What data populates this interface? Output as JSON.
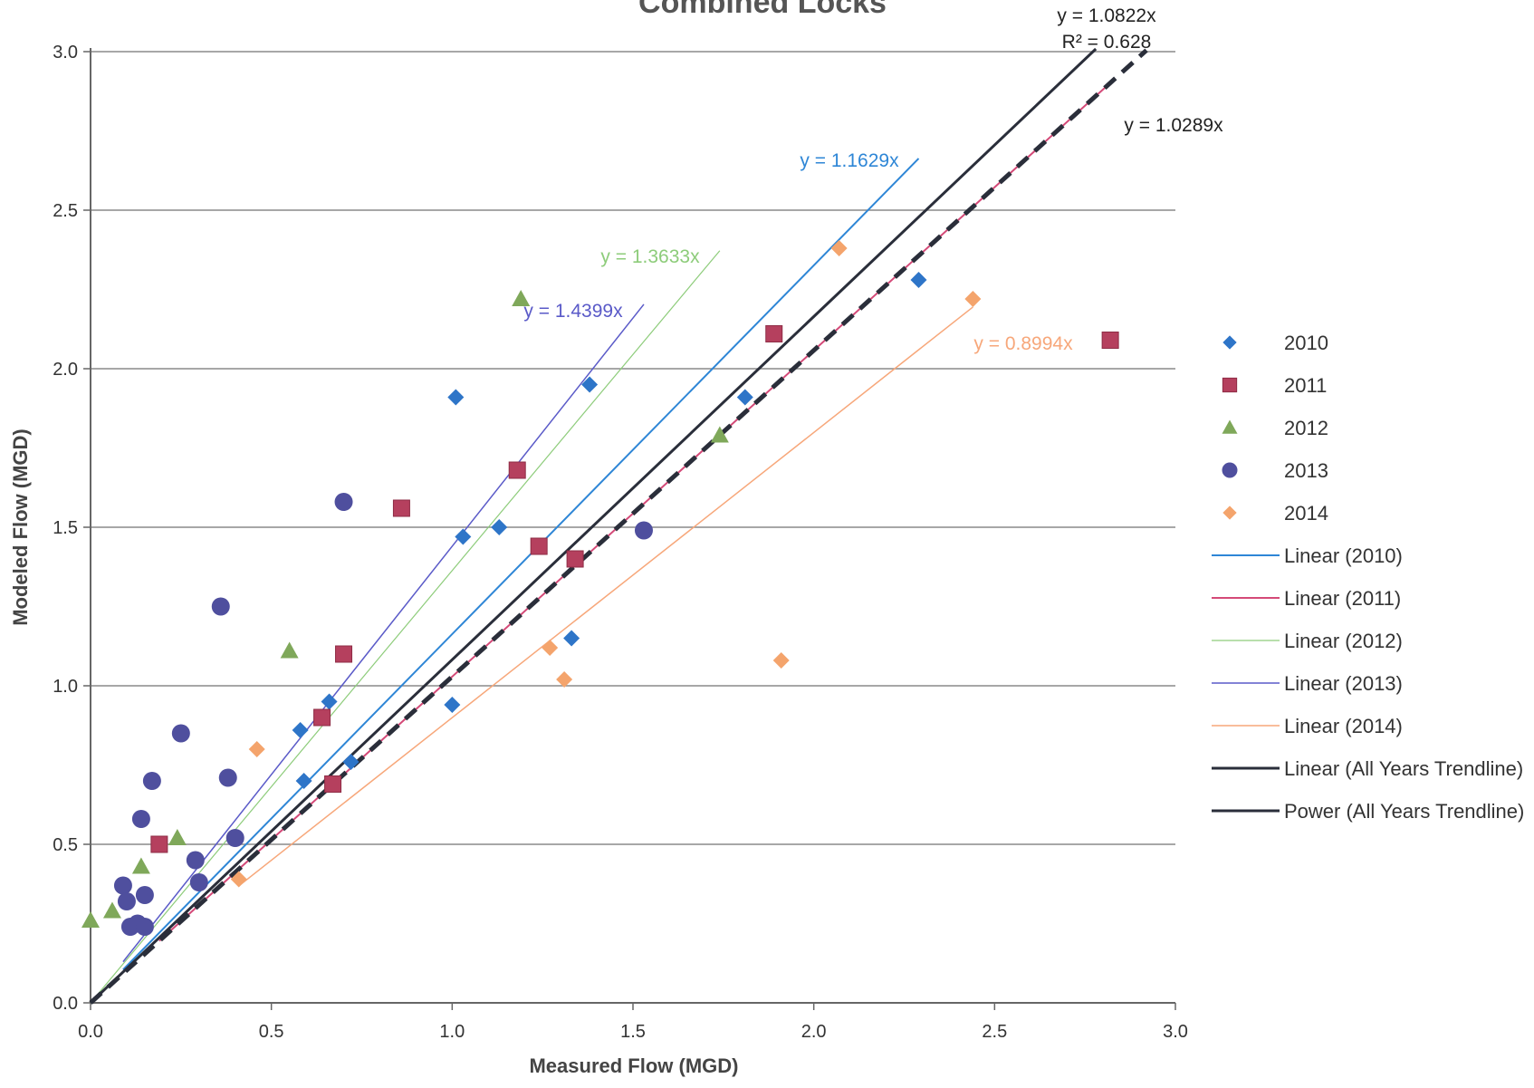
{
  "chart_data": {
    "type": "scatter",
    "title": "Combined Locks",
    "xlabel": "Measured Flow (MGD)",
    "ylabel": "Modeled Flow (MGD)",
    "xlim": [
      0,
      3
    ],
    "ylim": [
      0,
      3
    ],
    "xticks": [
      "0.0",
      "0.5",
      "1.0",
      "1.5",
      "2.0",
      "2.5",
      "3.0"
    ],
    "yticks": [
      "0.0",
      "0.5",
      "1.0",
      "1.5",
      "2.0",
      "2.5",
      "3.0"
    ],
    "grid": "horizontal",
    "legend_position": "right",
    "series": [
      {
        "name": "2010",
        "marker": "diamond",
        "color": "#2e75c8",
        "points": [
          [
            0.58,
            0.86
          ],
          [
            0.59,
            0.7
          ],
          [
            0.66,
            0.95
          ],
          [
            0.72,
            0.76
          ],
          [
            1.0,
            0.94
          ],
          [
            1.01,
            1.91
          ],
          [
            1.03,
            1.47
          ],
          [
            1.13,
            1.5
          ],
          [
            1.33,
            1.15
          ],
          [
            1.38,
            1.95
          ],
          [
            1.81,
            1.91
          ],
          [
            2.29,
            2.28
          ]
        ]
      },
      {
        "name": "2011",
        "marker": "square",
        "color": "#b5405e",
        "points": [
          [
            0.19,
            0.5
          ],
          [
            0.64,
            0.9
          ],
          [
            0.67,
            0.69
          ],
          [
            0.7,
            1.1
          ],
          [
            0.86,
            1.56
          ],
          [
            1.18,
            1.68
          ],
          [
            1.24,
            1.44
          ],
          [
            1.34,
            1.4
          ],
          [
            1.89,
            2.11
          ],
          [
            2.82,
            2.09
          ]
        ]
      },
      {
        "name": "2012",
        "marker": "triangle",
        "color": "#7fa85a",
        "points": [
          [
            0.0,
            0.26
          ],
          [
            0.06,
            0.29
          ],
          [
            0.14,
            0.43
          ],
          [
            0.24,
            0.52
          ],
          [
            0.55,
            1.11
          ],
          [
            1.19,
            2.22
          ],
          [
            1.74,
            1.79
          ]
        ]
      },
      {
        "name": "2013",
        "marker": "circle",
        "color": "#4f4f9e",
        "points": [
          [
            0.09,
            0.37
          ],
          [
            0.1,
            0.32
          ],
          [
            0.11,
            0.24
          ],
          [
            0.13,
            0.25
          ],
          [
            0.14,
            0.58
          ],
          [
            0.15,
            0.34
          ],
          [
            0.15,
            0.24
          ],
          [
            0.17,
            0.7
          ],
          [
            0.25,
            0.85
          ],
          [
            0.29,
            0.45
          ],
          [
            0.3,
            0.38
          ],
          [
            0.36,
            1.25
          ],
          [
            0.38,
            0.71
          ],
          [
            0.4,
            0.52
          ],
          [
            0.7,
            1.58
          ],
          [
            1.53,
            1.49
          ]
        ]
      },
      {
        "name": "2014",
        "marker": "diamond",
        "color": "#f4a46c",
        "points": [
          [
            0.41,
            0.39
          ],
          [
            0.46,
            0.8
          ],
          [
            1.27,
            1.12
          ],
          [
            1.31,
            1.02
          ],
          [
            1.91,
            1.08
          ],
          [
            2.07,
            2.38
          ],
          [
            2.44,
            2.22
          ]
        ]
      }
    ],
    "trendlines": [
      {
        "name": "Linear (2010)",
        "slope": 1.1629,
        "x_range": [
          0.09,
          2.29
        ],
        "color": "#2e86d6",
        "width": 2,
        "dash": "",
        "label": "y = 1.1629x",
        "label_color": "#2e86d6"
      },
      {
        "name": "Linear (2011)",
        "slope": 1.0289,
        "x_range": [
          0.19,
          2.82
        ],
        "color": "#d44a78",
        "width": 2,
        "dash": "",
        "label": "",
        "label_color": "#d44a78"
      },
      {
        "name": "Linear (2012)",
        "slope": 1.3633,
        "x_range": [
          0.0,
          1.74
        ],
        "color": "#8dcc7a",
        "width": 1.2,
        "dash": "",
        "label": "y = 1.3633x",
        "label_color": "#8dcc7a"
      },
      {
        "name": "Linear (2013)",
        "slope": 1.4399,
        "x_range": [
          0.09,
          1.53
        ],
        "color": "#5a5ac8",
        "width": 1.5,
        "dash": "",
        "label": "y = 1.4399x",
        "label_color": "#5a5ac8"
      },
      {
        "name": "Linear (2014)",
        "slope": 0.8994,
        "x_range": [
          0.41,
          2.44
        ],
        "color": "#f7a77a",
        "width": 1.5,
        "dash": "",
        "label": "y = 0.8994x",
        "label_color": "#f7a77a"
      },
      {
        "name": "Linear (All Years Trendline)",
        "slope": 1.0822,
        "x_range": [
          0.0,
          2.78
        ],
        "color": "#2a2e3a",
        "width": 3,
        "dash": "",
        "label": "y = 1.0822x",
        "label_color": "#222222"
      },
      {
        "name": "Power (All Years Trendline)",
        "slope": 1.0289,
        "x_range": [
          0.0,
          2.92
        ],
        "color": "#2a2e3a",
        "width": 5,
        "dash": "16,10",
        "label": "y = 1.0289x",
        "label_color": "#222222"
      }
    ],
    "annotations": [
      {
        "text": "R² = 0.628",
        "near": "y = 1.0822x"
      }
    ]
  }
}
